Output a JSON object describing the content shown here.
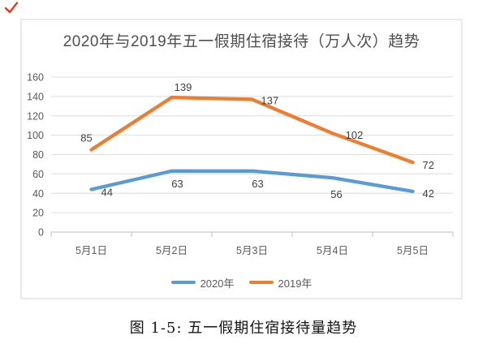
{
  "decorations": {
    "red_check_color": "#e8341c"
  },
  "chart_data": {
    "type": "line",
    "title": "2020年与2019年五一假期住宿接待（万人次）趋势",
    "categories": [
      "5月1日",
      "5月2日",
      "5月3日",
      "5月4日",
      "5月5日"
    ],
    "series": [
      {
        "name": "2020年",
        "color": "#5B9BD5",
        "values": [
          44,
          63,
          63,
          56,
          42
        ]
      },
      {
        "name": "2019年",
        "color": "#ED7D31",
        "values": [
          85,
          139,
          137,
          102,
          72
        ]
      }
    ],
    "ylim": [
      0,
      160
    ],
    "ytick_step": 20,
    "ytick_labels": [
      "0",
      "20",
      "40",
      "60",
      "80",
      "100",
      "120",
      "140",
      "160"
    ],
    "grid": true,
    "data_labels": true,
    "legend_position": "bottom"
  },
  "caption": "图 1-5: 五一假期住宿接待量趋势"
}
